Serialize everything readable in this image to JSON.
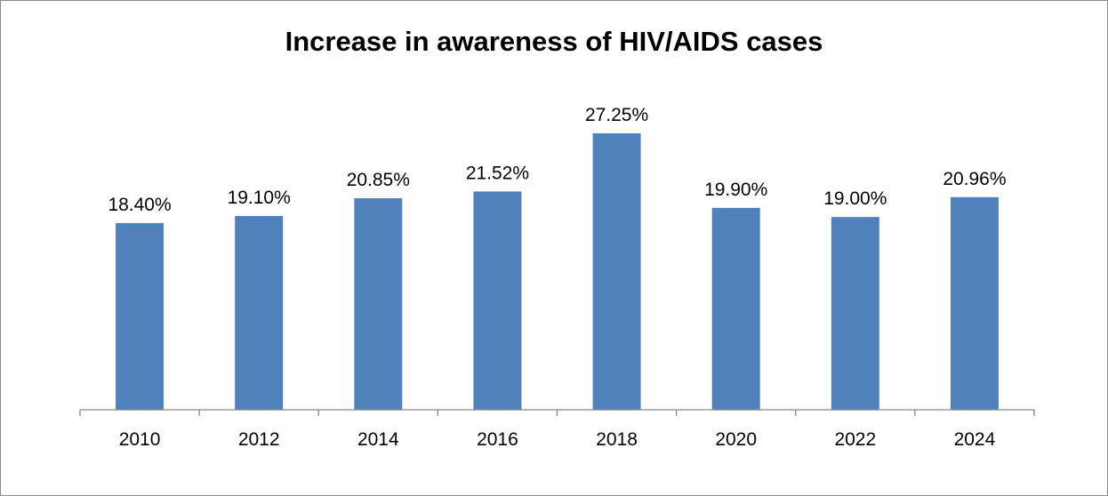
{
  "chart_data": {
    "type": "bar",
    "title": "Increase in awareness of HIV/AIDS cases",
    "categories": [
      "2010",
      "2012",
      "2014",
      "2016",
      "2018",
      "2020",
      "2022",
      "2024"
    ],
    "values": [
      18.4,
      19.1,
      20.85,
      21.52,
      27.25,
      19.9,
      19.0,
      20.96
    ],
    "data_labels": [
      "18.40%",
      "19.10%",
      "20.85%",
      "21.52%",
      "27.25%",
      "19.90%",
      "19.00%",
      "20.96%"
    ],
    "xlabel": "",
    "ylabel": "",
    "ylim": [
      0,
      30
    ],
    "grid": false,
    "legend": "none",
    "y_axis_visible": false,
    "colors": {
      "bar": "#4f81bd",
      "axis": "#868686",
      "frame": "#8c8c8c",
      "text": "#000000"
    }
  }
}
